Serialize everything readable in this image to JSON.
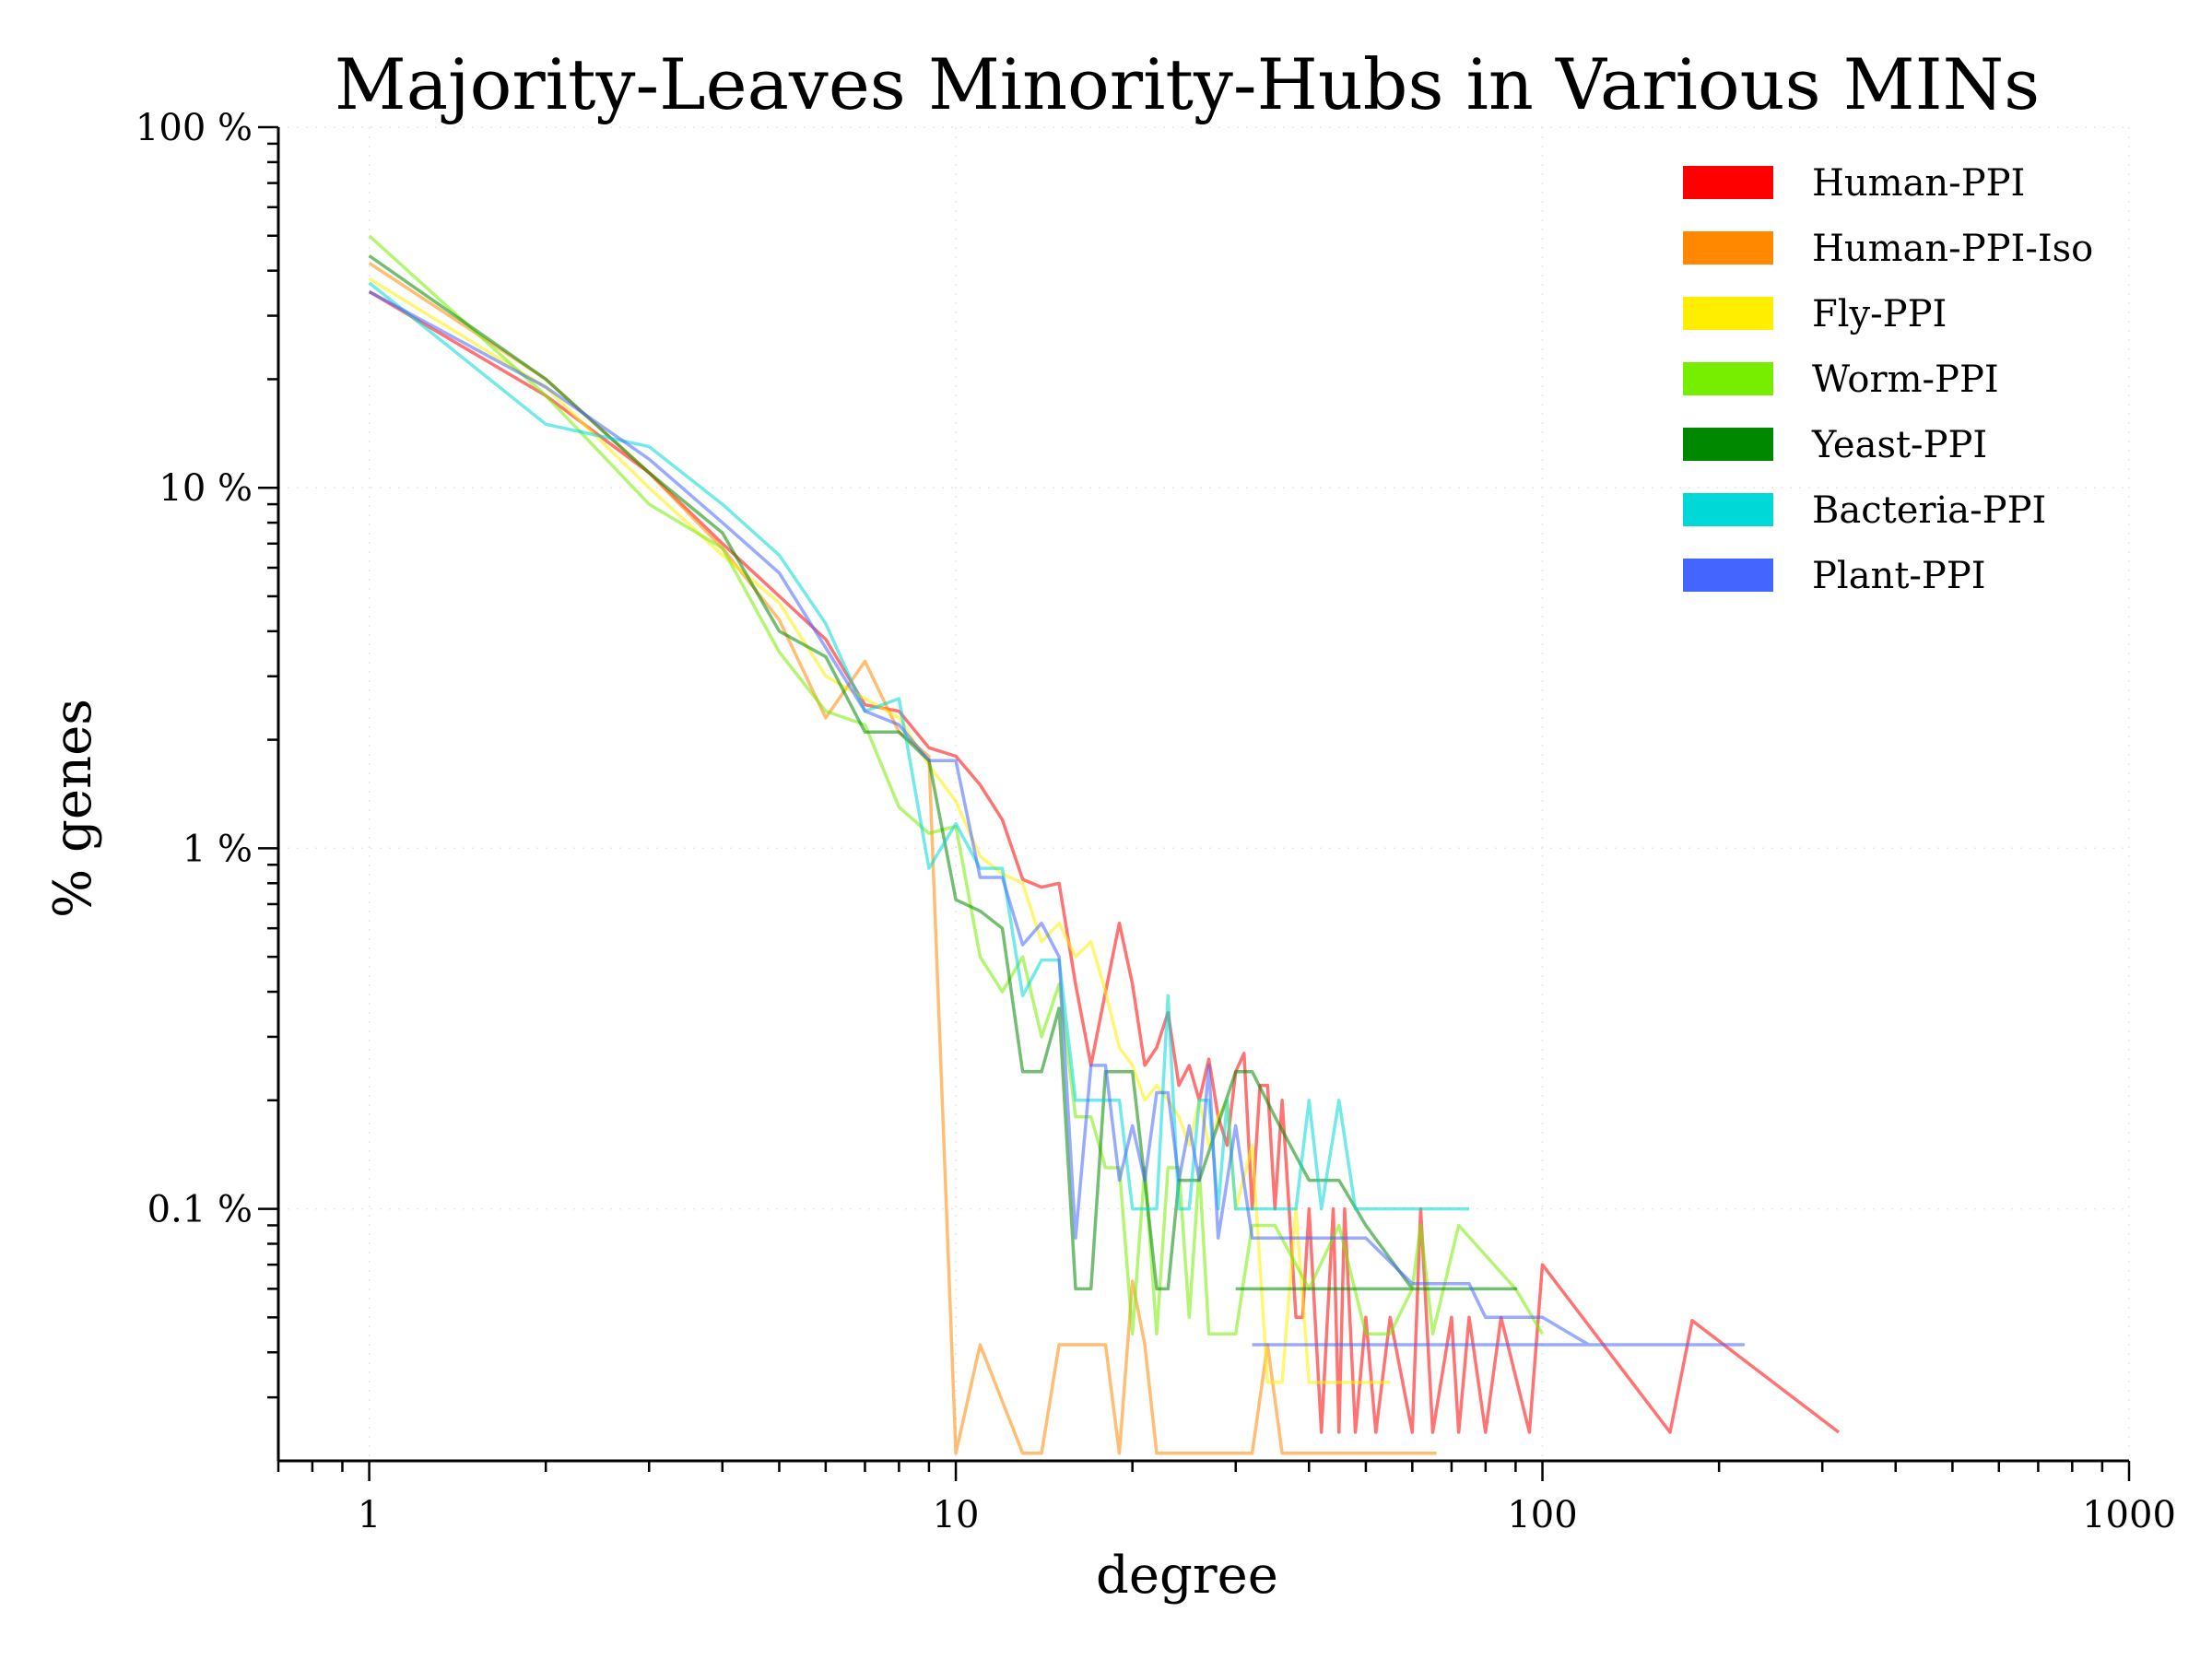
{
  "chart_data": {
    "type": "line",
    "title": "Majority-Leaves Minority-Hubs in Various MINs",
    "xlabel": "degree",
    "ylabel": "% genes",
    "x_scale": "log",
    "y_scale": "log",
    "xlim": [
      0.7,
      1000
    ],
    "ylim": [
      0.02,
      100
    ],
    "x_ticks": [
      {
        "value": 1,
        "label": "1"
      },
      {
        "value": 10,
        "label": "10"
      },
      {
        "value": 100,
        "label": "100"
      },
      {
        "value": 1000,
        "label": "1000"
      }
    ],
    "y_ticks": [
      {
        "value": 0.1,
        "label": "0.1 %"
      },
      {
        "value": 1,
        "label": "1 %"
      },
      {
        "value": 10,
        "label": "10 %"
      },
      {
        "value": 100,
        "label": "100 %"
      }
    ],
    "grid": true,
    "legend_position": "top-right",
    "series": [
      {
        "name": "Human-PPI",
        "color": "#ff0000",
        "x": [
          1,
          2,
          3,
          4,
          5,
          6,
          7,
          8,
          9,
          10,
          11,
          12,
          13,
          14,
          15,
          16,
          17,
          18,
          19,
          20,
          21,
          22,
          23,
          24,
          25,
          26,
          27,
          28,
          29,
          30,
          31,
          32,
          33,
          34,
          35,
          36,
          37,
          38,
          39,
          40,
          42,
          44,
          45,
          46,
          48,
          50,
          52,
          55,
          60,
          62,
          65,
          70,
          72,
          75,
          80,
          85,
          95,
          100,
          165,
          180,
          320
        ],
        "y": [
          35,
          18,
          11,
          7,
          5,
          3.8,
          2.5,
          2.4,
          1.9,
          1.8,
          1.5,
          1.2,
          0.82,
          0.78,
          0.8,
          0.42,
          0.25,
          0.4,
          0.62,
          0.42,
          0.25,
          0.28,
          0.35,
          0.22,
          0.25,
          0.2,
          0.26,
          0.18,
          0.15,
          0.24,
          0.27,
          0.1,
          0.22,
          0.22,
          0.1,
          0.2,
          0.1,
          0.05,
          0.05,
          0.1,
          0.024,
          0.1,
          0.024,
          0.1,
          0.024,
          0.05,
          0.024,
          0.05,
          0.024,
          0.1,
          0.024,
          0.05,
          0.024,
          0.05,
          0.024,
          0.05,
          0.024,
          0.07,
          0.024,
          0.049,
          0.024
        ]
      },
      {
        "name": "Human-PPI-Iso",
        "color": "#ff8800",
        "x": [
          1,
          2,
          3,
          4,
          5,
          6,
          7,
          8,
          9,
          10,
          11,
          13,
          14,
          15,
          16,
          17,
          18,
          19,
          20,
          21,
          22,
          25,
          27,
          30,
          32,
          34,
          36,
          40,
          50,
          66
        ],
        "y": [
          42,
          20,
          11,
          6.8,
          4.3,
          2.3,
          3.3,
          2.1,
          1.8,
          0.021,
          0.042,
          0.021,
          0.021,
          0.042,
          0.042,
          0.042,
          0.042,
          0.021,
          0.063,
          0.042,
          0.021,
          0.021,
          0.021,
          0.021,
          0.021,
          0.042,
          0.021,
          0.021,
          0.021,
          0.021
        ]
      },
      {
        "name": "Fly-PPI",
        "color": "#ffee00",
        "x": [
          1,
          2,
          3,
          4,
          5,
          6,
          7,
          8,
          9,
          10,
          11,
          12,
          13,
          14,
          15,
          16,
          17,
          18,
          19,
          20,
          21,
          22,
          23,
          24,
          25,
          26,
          27,
          28,
          29,
          30,
          32,
          34,
          36,
          38,
          40,
          45,
          50,
          55
        ],
        "y": [
          38,
          19,
          10,
          6.5,
          4.8,
          3,
          2.6,
          2.3,
          1.7,
          1.35,
          0.95,
          0.85,
          0.8,
          0.55,
          0.62,
          0.5,
          0.55,
          0.4,
          0.28,
          0.25,
          0.2,
          0.22,
          0.2,
          0.18,
          0.15,
          0.2,
          0.15,
          0.18,
          0.2,
          0.1,
          0.15,
          0.033,
          0.033,
          0.1,
          0.033,
          0.033,
          0.033,
          0.033
        ]
      },
      {
        "name": "Worm-PPI",
        "color": "#77ee00",
        "x": [
          1,
          2,
          3,
          4,
          5,
          6,
          7,
          8,
          9,
          10,
          11,
          12,
          13,
          14,
          15,
          16,
          17,
          18,
          19,
          20,
          21,
          22,
          23,
          24,
          25,
          26,
          27,
          30,
          32,
          35,
          40,
          45,
          50,
          55,
          60,
          62,
          65,
          72,
          90,
          100
        ],
        "y": [
          50,
          18,
          9,
          6.8,
          3.5,
          2.4,
          2.2,
          1.3,
          1.1,
          1.15,
          0.5,
          0.4,
          0.5,
          0.3,
          0.42,
          0.18,
          0.18,
          0.13,
          0.13,
          0.045,
          0.13,
          0.045,
          0.13,
          0.13,
          0.05,
          0.13,
          0.045,
          0.045,
          0.09,
          0.09,
          0.06,
          0.09,
          0.045,
          0.045,
          0.06,
          0.09,
          0.045,
          0.09,
          0.06,
          0.045
        ]
      },
      {
        "name": "Yeast-PPI",
        "color": "#008800",
        "x": [
          1,
          2,
          3,
          4,
          5,
          6,
          7,
          8,
          9,
          10,
          11,
          12,
          13,
          14,
          15,
          16,
          17,
          18,
          19,
          20,
          21,
          22,
          23,
          24,
          25,
          26,
          30,
          32,
          35,
          40,
          45,
          50,
          60,
          80,
          90,
          60,
          30
        ],
        "y": [
          44,
          20,
          11,
          7.5,
          4,
          3.4,
          2.1,
          2.1,
          1.75,
          0.72,
          0.67,
          0.6,
          0.24,
          0.24,
          0.36,
          0.06,
          0.06,
          0.24,
          0.24,
          0.24,
          0.12,
          0.06,
          0.06,
          0.12,
          0.12,
          0.12,
          0.24,
          0.24,
          0.18,
          0.12,
          0.12,
          0.09,
          0.06,
          0.06,
          0.06,
          0.06,
          0.06
        ]
      },
      {
        "name": "Bacteria-PPI",
        "color": "#00d8d8",
        "x": [
          1,
          2,
          3,
          4,
          5,
          6,
          7,
          8,
          9,
          10,
          11,
          12,
          13,
          14,
          15,
          16,
          17,
          18,
          19,
          20,
          21,
          22,
          23,
          24,
          25,
          26,
          27,
          28,
          29,
          30,
          31,
          32,
          35,
          38,
          40,
          42,
          45,
          48,
          55,
          62,
          65,
          75
        ],
        "y": [
          37,
          15,
          13,
          9,
          6.5,
          4.2,
          2.4,
          2.6,
          0.88,
          1.17,
          0.88,
          0.88,
          0.39,
          0.49,
          0.49,
          0.2,
          0.2,
          0.2,
          0.2,
          0.1,
          0.1,
          0.1,
          0.39,
          0.1,
          0.1,
          0.2,
          0.2,
          0.1,
          0.2,
          0.1,
          0.1,
          0.1,
          0.1,
          0.1,
          0.2,
          0.1,
          0.2,
          0.1,
          0.1,
          0.1,
          0.1,
          0.1
        ]
      },
      {
        "name": "Plant-PPI",
        "color": "#4466ff",
        "x": [
          1,
          2,
          3,
          4,
          5,
          6,
          7,
          8,
          9,
          10,
          11,
          12,
          13,
          14,
          15,
          16,
          17,
          18,
          19,
          20,
          21,
          22,
          23,
          24,
          25,
          26,
          27,
          28,
          30,
          32,
          35,
          40,
          45,
          50,
          60,
          75,
          80,
          100,
          120,
          140,
          160,
          220,
          32
        ],
        "y": [
          35,
          19,
          12,
          8,
          5.8,
          3.6,
          2.4,
          2.2,
          1.75,
          1.75,
          0.83,
          0.83,
          0.54,
          0.62,
          0.5,
          0.083,
          0.25,
          0.25,
          0.12,
          0.17,
          0.12,
          0.21,
          0.21,
          0.12,
          0.17,
          0.12,
          0.25,
          0.083,
          0.17,
          0.083,
          0.083,
          0.083,
          0.083,
          0.083,
          0.062,
          0.062,
          0.05,
          0.05,
          0.042,
          0.042,
          0.042,
          0.042,
          0.042
        ]
      }
    ]
  }
}
